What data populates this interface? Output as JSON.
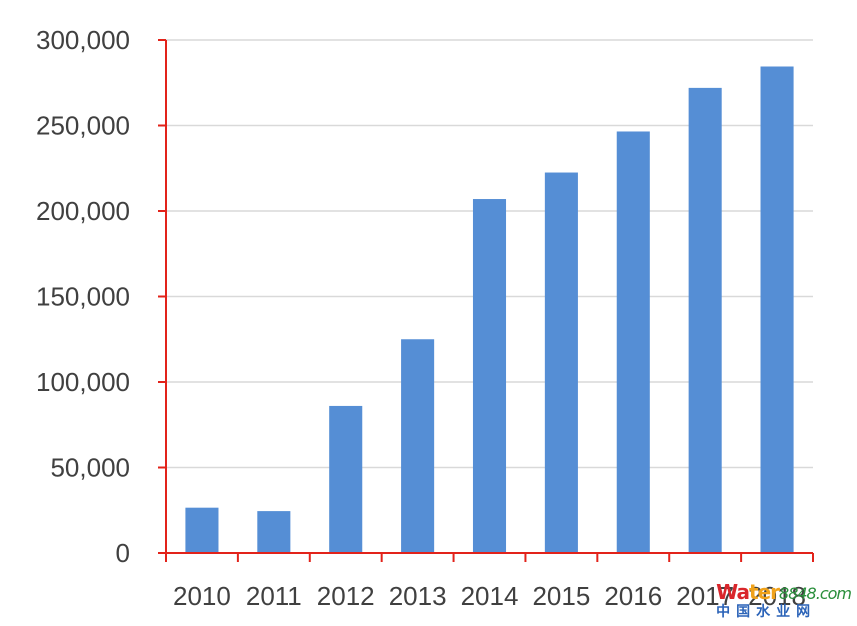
{
  "chart_data": {
    "type": "bar",
    "title": "",
    "xlabel": "",
    "ylabel": "",
    "categories": [
      "2010",
      "2011",
      "2012",
      "2013",
      "2014",
      "2015",
      "2016",
      "2017",
      "2018"
    ],
    "values": [
      26500,
      24500,
      86000,
      125000,
      207000,
      222500,
      246500,
      272000,
      284500
    ],
    "ylim": [
      0,
      300000
    ],
    "yticks": [
      0,
      50000,
      100000,
      150000,
      200000,
      250000,
      300000
    ],
    "ytick_labels": [
      "0",
      "50,000",
      "100,000",
      "150,000",
      "200,000",
      "250,000",
      "300,000"
    ],
    "grid": true,
    "legend": "none",
    "bar_color": "#558ed5",
    "axis_color": "#e2231a",
    "grid_color": "#d9d9d9"
  },
  "watermark": {
    "top_a": "Wa",
    "top_b": "ter",
    "top_c": "8848.com",
    "bottom": "中国水业网"
  }
}
